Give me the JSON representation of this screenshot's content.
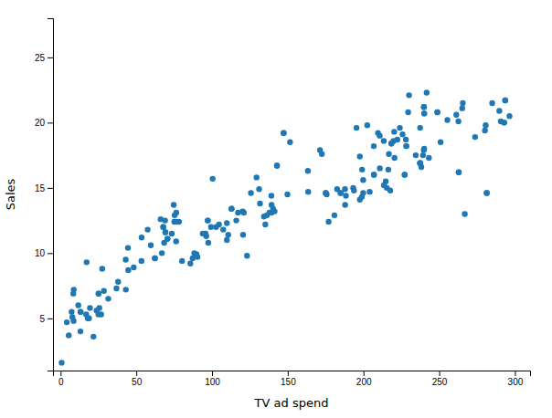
{
  "chart_data": {
    "type": "scatter",
    "xlabel": "TV ad spend",
    "ylabel": "Sales",
    "color": "#1f77b4",
    "xlim": [
      -5,
      310
    ],
    "ylim": [
      1,
      28
    ],
    "xticks": [
      0,
      50,
      100,
      150,
      200,
      250,
      300
    ],
    "yticks": [
      5,
      10,
      15,
      20,
      25
    ],
    "x": [
      230.1,
      44.5,
      17.2,
      151.5,
      180.8,
      8.7,
      57.5,
      120.2,
      8.6,
      199.8,
      66.1,
      214.7,
      23.8,
      97.5,
      204.1,
      195.4,
      67.8,
      281.4,
      69.2,
      147.3,
      218.4,
      237.4,
      13.2,
      228.3,
      62.3,
      262.9,
      142.9,
      240.1,
      248.8,
      70.6,
      292.9,
      112.9,
      97.2,
      265.6,
      95.7,
      290.7,
      266.9,
      74.7,
      43.1,
      228.0,
      202.5,
      177.0,
      293.6,
      206.9,
      25.1,
      175.1,
      89.7,
      239.9,
      227.2,
      66.9,
      199.8,
      100.4,
      216.4,
      182.6,
      262.7,
      198.9,
      7.3,
      136.2,
      210.8,
      210.7,
      53.5,
      261.3,
      239.3,
      102.7,
      131.1,
      69.0,
      31.5,
      139.3,
      237.4,
      216.8,
      199.1,
      109.8,
      26.8,
      129.4,
      213.4,
      16.9,
      27.5,
      120.5,
      5.4,
      116.0,
      76.4,
      239.8,
      75.3,
      68.4,
      213.5,
      193.2,
      76.3,
      110.7,
      88.3,
      109.8,
      134.3,
      28.6,
      217.7,
      250.9,
      107.4,
      163.3,
      197.6,
      184.9,
      289.7,
      135.2,
      222.4,
      296.4,
      280.2,
      187.9,
      238.2,
      137.9,
      25.0,
      90.4,
      13.1,
      255.4,
      225.8,
      241.7,
      175.7,
      209.6,
      78.2,
      75.1,
      139.2,
      76.4,
      125.7,
      19.4,
      141.3,
      18.8,
      224.0,
      123.1,
      229.5,
      87.2,
      7.8,
      80.2,
      220.3,
      59.6,
      0.7,
      265.2,
      8.4,
      219.8,
      36.9,
      48.3,
      25.6,
      273.7,
      43.0,
      184.9,
      73.4,
      193.7,
      220.5,
      104.6,
      96.2,
      140.3,
      240.1,
      243.2,
      38.0,
      44.7,
      280.7,
      121.0,
      197.6,
      171.3,
      187.8,
      4.1,
      93.9,
      149.8,
      11.7,
      131.7,
      172.5,
      85.7,
      188.4,
      163.5,
      117.2,
      234.5,
      17.9,
      206.8,
      215.4,
      285.0,
      139.3,
      53.4,
      99.3,
      21.7,
      237.4,
      293.6,
      206.9,
      25.1,
      175.1,
      89.7,
      239.9,
      227.2,
      67.8,
      281.4,
      69.2,
      147.3,
      218.4,
      237.4,
      13.2,
      228.3,
      62.3,
      262.9,
      142.9,
      240.1,
      248.8,
      70.6,
      292.9,
      112.9,
      97.2
    ],
    "y": [
      22.1,
      10.4,
      9.3,
      18.5,
      12.9,
      7.2,
      11.8,
      13.2,
      4.8,
      15.6,
      12.6,
      15.5,
      5.6,
      10.8,
      14.7,
      19.6,
      12.0,
      14.6,
      11.6,
      19.2,
      18.4,
      16.9,
      5.5,
      18.2,
      9.6,
      16.2,
      16.7,
      20.7,
      20.8,
      11.1,
      20.0,
      13.4,
      12.5,
      21.5,
      11.5,
      20.1,
      13.0,
      13.7,
      7.2,
      18.7,
      19.8,
      12.4,
      21.7,
      16.0,
      6.9,
      14.6,
      9.9,
      21.2,
      16.0,
      10.0,
      14.6,
      15.7,
      16.4,
      14.9,
      20.1,
      14.3,
      5.5,
      12.9,
      16.5,
      19.0,
      11.2,
      20.6,
      17.5,
      12.0,
      14.9,
      12.5,
      6.5,
      13.1,
      19.6,
      17.6,
      16.4,
      12.3,
      5.3,
      15.8,
      18.6,
      5.3,
      8.8,
      11.4,
      3.7,
      12.5,
      13.1,
      17.9,
      12.9,
      10.8,
      15.2,
      15.0,
      10.9,
      11.4,
      10.0,
      11.0,
      12.8,
      7.1,
      14.8,
      18.5,
      11.8,
      16.3,
      14.1,
      14.6,
      20.9,
      12.2,
      18.7,
      20.5,
      19.4,
      13.7,
      16.6,
      13.1,
      5.3,
      9.7,
      4.0,
      20.2,
      19.1,
      22.3,
      14.5,
      19.2,
      12.4,
      12.4,
      14.4,
      12.4,
      14.6,
      5.8,
      13.2,
      5.0,
      19.6,
      9.8,
      20.8,
      9.6,
      5.1,
      9.4,
      19.3,
      10.6,
      1.6,
      21.1,
      6.9,
      18.6,
      7.3,
      8.9,
      5.8,
      18.9,
      9.5,
      14.6,
      11.5,
      14.8,
      17.3,
      12.2,
      11.3,
      13.4,
      18.0,
      17.3,
      7.8,
      8.7,
      19.8,
      13.1,
      17.4,
      17.9,
      14.9,
      4.7,
      11.5,
      14.5,
      6.0,
      13.8,
      17.6,
      9.2,
      14.4,
      14.7,
      13.1,
      17.5,
      5.0,
      18.2,
      15.0,
      21.5,
      13.7,
      9.4,
      12.0,
      3.6,
      16.9,
      21.7,
      16.0,
      6.9,
      14.6,
      9.9,
      21.2,
      16.0,
      12.0,
      14.6,
      11.6,
      19.2,
      18.4,
      16.9,
      5.5,
      18.2,
      9.6,
      16.2,
      16.7,
      20.7,
      20.8,
      11.1,
      20.0,
      13.4,
      12.5
    ]
  }
}
